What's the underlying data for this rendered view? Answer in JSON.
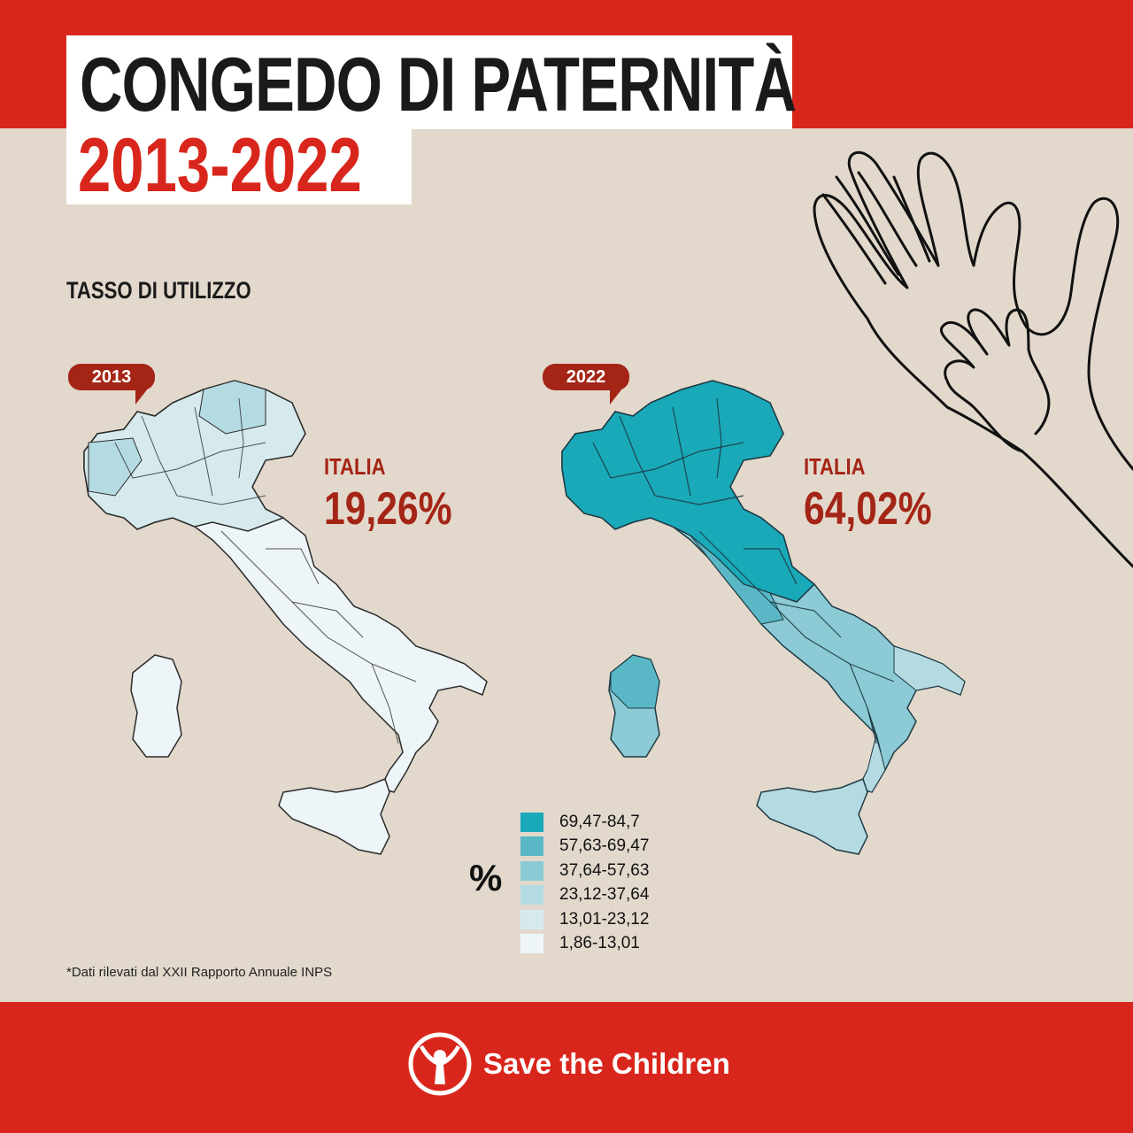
{
  "header": {
    "title": "CONGEDO DI PATERNITÀ",
    "years": "2013-2022"
  },
  "subtitle": "TASSO DI UTILIZZO",
  "maps": [
    {
      "year": "2013",
      "italia_label": "ITALIA",
      "italia_value": "19,26%",
      "dominant_class": "1,86-13,01"
    },
    {
      "year": "2022",
      "italia_label": "ITALIA",
      "italia_value": "64,02%",
      "dominant_class": "69,47-84,7"
    }
  ],
  "legend": {
    "unit": "%",
    "classes": [
      {
        "label": "69,47-84,7",
        "color": "#19a9b9"
      },
      {
        "label": "57,63-69,47",
        "color": "#5ab8c6"
      },
      {
        "label": "37,64-57,63",
        "color": "#8ccbd5"
      },
      {
        "label": "23,12-37,64",
        "color": "#b5dbe2"
      },
      {
        "label": "13,01-23,12",
        "color": "#d6eaee"
      },
      {
        "label": "1,86-13,01",
        "color": "#eef5f8"
      }
    ]
  },
  "footnote": "*Dati rilevati dal XXII Rapporto Annuale INPS",
  "footer": {
    "brand": "Save the Children"
  },
  "colors": {
    "brand_red": "#d9261c",
    "dark_red": "#a42516",
    "background": "#e2d9cc"
  }
}
